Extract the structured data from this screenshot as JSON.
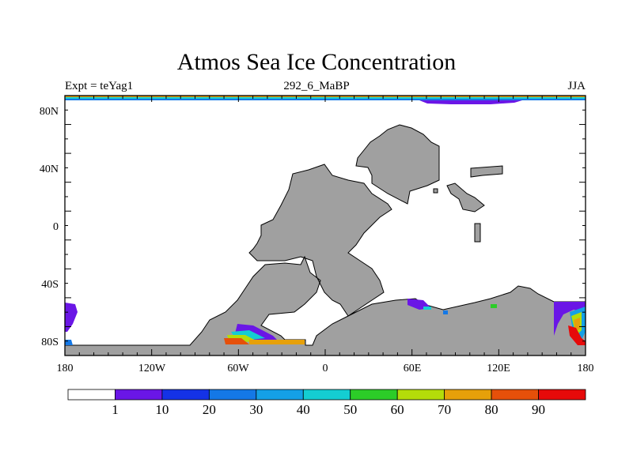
{
  "title": "Atmos Sea Ice Concentration",
  "subtitle_left": "Expt = teYag1",
  "subtitle_center": "292_6_MaBP",
  "subtitle_right": "JJA",
  "chart_data": {
    "type": "heatmap",
    "title": "Atmos Sea Ice Concentration",
    "x_tick_labels": [
      "180",
      "120W",
      "60W",
      "0",
      "60E",
      "120E",
      "180"
    ],
    "y_tick_labels": [
      "80N",
      "40N",
      "0",
      "40S",
      "80S"
    ],
    "colorbar": {
      "levels": [
        1,
        10,
        20,
        30,
        40,
        50,
        60,
        70,
        80,
        90
      ],
      "labels": [
        "1",
        "10",
        "20",
        "30",
        "40",
        "50",
        "60",
        "70",
        "80",
        "90"
      ],
      "colors": [
        "#ffffff",
        "#6a16e6",
        "#1432e6",
        "#1478e6",
        "#14a0e6",
        "#14cdd2",
        "#2ccc28",
        "#b4dc0a",
        "#e6a00a",
        "#e6500a",
        "#e60a0a"
      ]
    },
    "land_color": "#a0a0a0",
    "units": "%"
  }
}
